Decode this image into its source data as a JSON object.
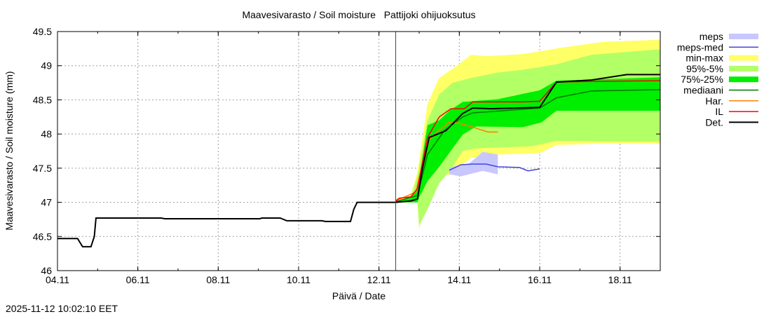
{
  "chart_data": {
    "type": "line",
    "title": "Maavesivarasto / Soil moisture   Pattijoki ohijuoksutus",
    "xlabel": "Päivä / Date",
    "ylabel": "Maavesivarasto / Soil moisture (mm)",
    "xlim": [
      "04.11 00:00",
      "19.11 00:00"
    ],
    "ylim": [
      46,
      49.5
    ],
    "yticks": [
      "46",
      "46.5",
      "47",
      "47.5",
      "48",
      "48.5",
      "49",
      "49.5"
    ],
    "xticks": [
      "04.11",
      "06.11",
      "08.11",
      "10.11",
      "12.11",
      "14.11",
      "16.11",
      "18.11"
    ],
    "grid": true,
    "legend_placement": "right",
    "forecast_start": "12.11 10:00",
    "bands": [
      {
        "name": "min-max",
        "color": "#ffff66",
        "upper": [
          [
            "12.11 10:00",
            47.02
          ],
          [
            "12.11 19:00",
            47.1
          ],
          [
            "12.11 23:00",
            47.45
          ],
          [
            "13.11 05:00",
            48.44
          ],
          [
            "13.11 12:00",
            48.82
          ],
          [
            "13.11 22:00",
            48.99
          ],
          [
            "14.11 07:00",
            49.16
          ],
          [
            "14.11 16:00",
            49.14
          ],
          [
            "15.11 14:00",
            49.17
          ],
          [
            "16.11 12:00",
            49.26
          ],
          [
            "17.11 14:00",
            49.35
          ],
          [
            "19.11 00:00",
            49.38
          ]
        ],
        "lower": [
          [
            "12.11 10:00",
            47.0
          ],
          [
            "12.11 23:00",
            47.0
          ],
          [
            "13.11 00:00",
            46.61
          ],
          [
            "13.11 05:00",
            47.04
          ],
          [
            "13.11 12:00",
            47.45
          ],
          [
            "13.11 18:00",
            47.4
          ],
          [
            "14.11 07:00",
            47.65
          ],
          [
            "14.11 23:00",
            47.7
          ],
          [
            "16.11 00:00",
            47.72
          ],
          [
            "16.11 10:00",
            47.84
          ],
          [
            "17.11 14:00",
            47.86
          ],
          [
            "19.11 00:00",
            47.86
          ]
        ]
      },
      {
        "name": "95%-5%",
        "color": "#b3ff66",
        "upper": [
          [
            "12.11 10:00",
            47.02
          ],
          [
            "12.11 19:00",
            47.08
          ],
          [
            "12.11 23:00",
            47.38
          ],
          [
            "13.11 05:00",
            48.2
          ],
          [
            "13.11 12:00",
            48.58
          ],
          [
            "13.11 20:00",
            48.75
          ],
          [
            "14.11 07:00",
            48.82
          ],
          [
            "14.11 23:00",
            48.9
          ],
          [
            "15.11 14:00",
            48.94
          ],
          [
            "16.11 10:00",
            49.02
          ],
          [
            "17.11 07:00",
            49.16
          ],
          [
            "19.11 00:00",
            49.24
          ]
        ],
        "lower": [
          [
            "12.11 10:00",
            47.0
          ],
          [
            "12.11 23:00",
            47.0
          ],
          [
            "13.11 00:00",
            46.66
          ],
          [
            "13.11 05:00",
            46.9
          ],
          [
            "13.11 12:00",
            47.28
          ],
          [
            "13.11 18:00",
            47.45
          ],
          [
            "14.11 02:00",
            47.75
          ],
          [
            "14.11 10:00",
            47.79
          ],
          [
            "15.11 19:00",
            47.82
          ],
          [
            "16.11 10:00",
            47.9
          ],
          [
            "19.11 00:00",
            47.89
          ]
        ]
      },
      {
        "name": "75%-25%",
        "color": "#00ee00",
        "upper": [
          [
            "12.11 10:00",
            47.01
          ],
          [
            "12.11 19:00",
            47.06
          ],
          [
            "12.11 23:00",
            47.2
          ],
          [
            "13.11 05:00",
            48.13
          ],
          [
            "13.11 12:00",
            48.2
          ],
          [
            "13.11 18:00",
            48.34
          ],
          [
            "14.11 02:00",
            48.47
          ],
          [
            "14.11 23:00",
            48.51
          ],
          [
            "16.11 00:00",
            48.64
          ],
          [
            "16.11 10:00",
            48.78
          ],
          [
            "19.11 00:00",
            48.83
          ]
        ],
        "lower": [
          [
            "12.11 10:00",
            47.0
          ],
          [
            "12.11 23:00",
            47.0
          ],
          [
            "13.11 00:00",
            47.07
          ],
          [
            "13.11 05:00",
            47.31
          ],
          [
            "13.11 12:00",
            47.52
          ],
          [
            "13.11 20:00",
            47.79
          ],
          [
            "14.11 02:00",
            47.99
          ],
          [
            "14.11 10:00",
            48.11
          ],
          [
            "15.11 14:00",
            48.1
          ],
          [
            "16.11 01:00",
            48.17
          ],
          [
            "16.11 10:00",
            48.34
          ],
          [
            "19.11 00:00",
            48.34
          ]
        ]
      },
      {
        "name": "meps",
        "color": "#c8c8ff",
        "upper": [
          [
            "13.11 18:00",
            47.51
          ],
          [
            "14.11 06:00",
            47.57
          ],
          [
            "14.11 14:00",
            47.74
          ],
          [
            "14.11 23:00",
            47.7
          ]
        ],
        "lower": [
          [
            "13.11 18:00",
            47.41
          ],
          [
            "14.11 01:00",
            47.38
          ],
          [
            "14.11 14:00",
            47.46
          ],
          [
            "14.11 23:00",
            47.41
          ]
        ]
      }
    ],
    "series": [
      {
        "name": "meps-med",
        "color": "#4444dd",
        "points": [
          [
            "13.11 18:00",
            47.47
          ],
          [
            "14.11 01:00",
            47.55
          ],
          [
            "14.11 08:00",
            47.56
          ],
          [
            "14.11 16:00",
            47.56
          ],
          [
            "14.11 23:00",
            47.52
          ],
          [
            "15.11 12:00",
            47.51
          ],
          [
            "15.11 17:00",
            47.46
          ],
          [
            "16.11 00:00",
            47.49
          ]
        ]
      },
      {
        "name": "mediaani",
        "color": "#007700",
        "points": [
          [
            "12.11 10:00",
            47.01
          ],
          [
            "12.11 23:00",
            47.1
          ],
          [
            "13.11 05:00",
            47.7
          ],
          [
            "13.11 15:00",
            48.05
          ],
          [
            "14.11 02:00",
            48.25
          ],
          [
            "14.11 08:00",
            48.31
          ],
          [
            "16.11 00:00",
            48.38
          ],
          [
            "16.11 10:00",
            48.53
          ],
          [
            "17.11 07:00",
            48.63
          ],
          [
            "19.11 00:00",
            48.65
          ]
        ]
      },
      {
        "name": "Har.",
        "color": "#ff8000",
        "points": [
          [
            "12.11 10:00",
            47.02
          ],
          [
            "12.11 22:00",
            47.15
          ],
          [
            "13.11 05:00",
            47.9
          ],
          [
            "13.11 11:00",
            48.03
          ],
          [
            "13.11 18:00",
            48.18
          ],
          [
            "14.11 01:00",
            48.15
          ],
          [
            "14.11 08:00",
            48.1
          ],
          [
            "14.11 17:00",
            48.03
          ],
          [
            "14.11 23:00",
            48.03
          ]
        ]
      },
      {
        "name": "IL",
        "color": "#ff0000",
        "points": [
          [
            "12.11 10:00",
            47.02
          ],
          [
            "12.11 12:00",
            47.06
          ],
          [
            "12.11 19:00",
            47.08
          ],
          [
            "12.11 23:00",
            47.2
          ],
          [
            "13.11 05:00",
            47.95
          ],
          [
            "13.11 12:00",
            48.25
          ],
          [
            "13.11 19:00",
            48.37
          ],
          [
            "14.11 03:00",
            48.37
          ],
          [
            "14.11 08:00",
            48.47
          ],
          [
            "15.11 14:00",
            48.47
          ],
          [
            "16.11 00:00",
            48.48
          ],
          [
            "16.11 10:00",
            48.76
          ],
          [
            "17.11 07:00",
            48.77
          ],
          [
            "19.11 00:00",
            48.78
          ]
        ]
      },
      {
        "name": "Det.",
        "color": "#000000",
        "points": [
          [
            "04.11 00:00",
            46.47
          ],
          [
            "04.11 12:00",
            46.47
          ],
          [
            "04.11 15:00",
            46.35
          ],
          [
            "04.11 20:00",
            46.35
          ],
          [
            "04.11 22:00",
            46.5
          ],
          [
            "04.11 23:00",
            46.77
          ],
          [
            "06.11 14:00",
            46.77
          ],
          [
            "06.11 16:00",
            46.76
          ],
          [
            "09.11 01:00",
            46.76
          ],
          [
            "09.11 02:00",
            46.77
          ],
          [
            "09.11 13:00",
            46.77
          ],
          [
            "09.11 17:00",
            46.73
          ],
          [
            "10.11 14:00",
            46.73
          ],
          [
            "10.11 16:00",
            46.72
          ],
          [
            "11.11 07:00",
            46.72
          ],
          [
            "11.11 09:00",
            46.9
          ],
          [
            "11.11 11:00",
            47.0
          ],
          [
            "12.11 10:00",
            47.0
          ],
          [
            "12.11 19:00",
            47.02
          ],
          [
            "12.11 23:00",
            47.05
          ],
          [
            "13.11 02:00",
            47.5
          ],
          [
            "13.11 06:00",
            47.95
          ],
          [
            "13.11 16:00",
            48.05
          ],
          [
            "14.11 02:00",
            48.3
          ],
          [
            "14.11 08:00",
            48.38
          ],
          [
            "14.11 19:00",
            48.37
          ],
          [
            "16.11 00:00",
            48.39
          ],
          [
            "16.11 10:00",
            48.76
          ],
          [
            "17.11 07:00",
            48.79
          ],
          [
            "18.11 04:00",
            48.87
          ],
          [
            "19.11 00:00",
            48.87
          ]
        ]
      }
    ],
    "legend": [
      {
        "label": "meps",
        "kind": "band",
        "color": "#c8c8ff"
      },
      {
        "label": "meps-med",
        "kind": "line",
        "color": "#4444dd"
      },
      {
        "label": "min-max",
        "kind": "band",
        "color": "#ffff66"
      },
      {
        "label": "95%-5%",
        "kind": "band",
        "color": "#b3ff66"
      },
      {
        "label": "75%-25%",
        "kind": "band",
        "color": "#00ee00"
      },
      {
        "label": "mediaani",
        "kind": "line",
        "color": "#007700"
      },
      {
        "label": "Har.",
        "kind": "line",
        "color": "#ff8000"
      },
      {
        "label": "IL",
        "kind": "line",
        "color": "#ff0000"
      },
      {
        "label": "Det.",
        "kind": "line",
        "color": "#000000"
      }
    ]
  },
  "timestamp": "2025-11-12 10:02:10 EET"
}
